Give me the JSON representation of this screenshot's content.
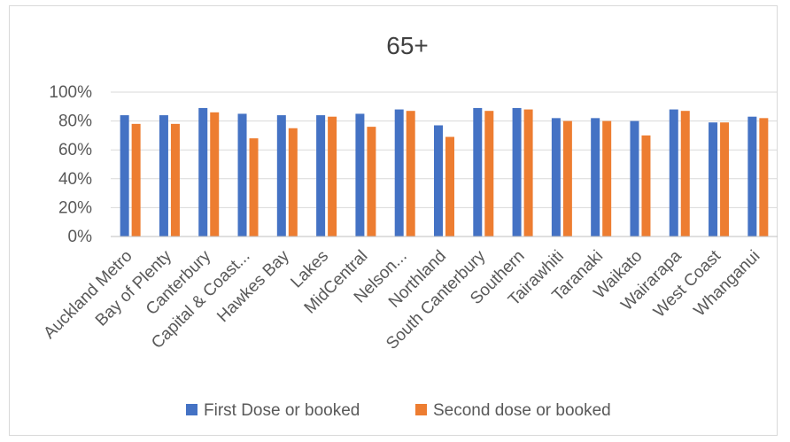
{
  "chart_data": {
    "type": "bar",
    "title": "65+",
    "xlabel": "",
    "ylabel": "",
    "ylim": [
      0,
      1
    ],
    "yticks": [
      "0%",
      "20%",
      "40%",
      "60%",
      "80%",
      "100%"
    ],
    "grid": true,
    "legend_position": "bottom",
    "categories": [
      "Auckland Metro",
      "Bay of Plenty",
      "Canterbury",
      "Capital & Coast...",
      "Hawkes Bay",
      "Lakes",
      "MidCentral",
      "Nelson...",
      "Northland",
      "South Canterbury",
      "Southern",
      "Tairawhiti",
      "Taranaki",
      "Waikato",
      "Wairarapa",
      "West Coast",
      "Whanganui"
    ],
    "series": [
      {
        "name": "First Dose or booked",
        "color": "#4472C4",
        "values": [
          0.84,
          0.84,
          0.89,
          0.85,
          0.84,
          0.84,
          0.85,
          0.88,
          0.77,
          0.89,
          0.89,
          0.82,
          0.82,
          0.8,
          0.88,
          0.79,
          0.83
        ]
      },
      {
        "name": "Second dose or booked",
        "color": "#ED7D31",
        "values": [
          0.78,
          0.78,
          0.86,
          0.68,
          0.75,
          0.83,
          0.76,
          0.87,
          0.69,
          0.87,
          0.88,
          0.8,
          0.8,
          0.7,
          0.87,
          0.79,
          0.82
        ]
      }
    ]
  }
}
